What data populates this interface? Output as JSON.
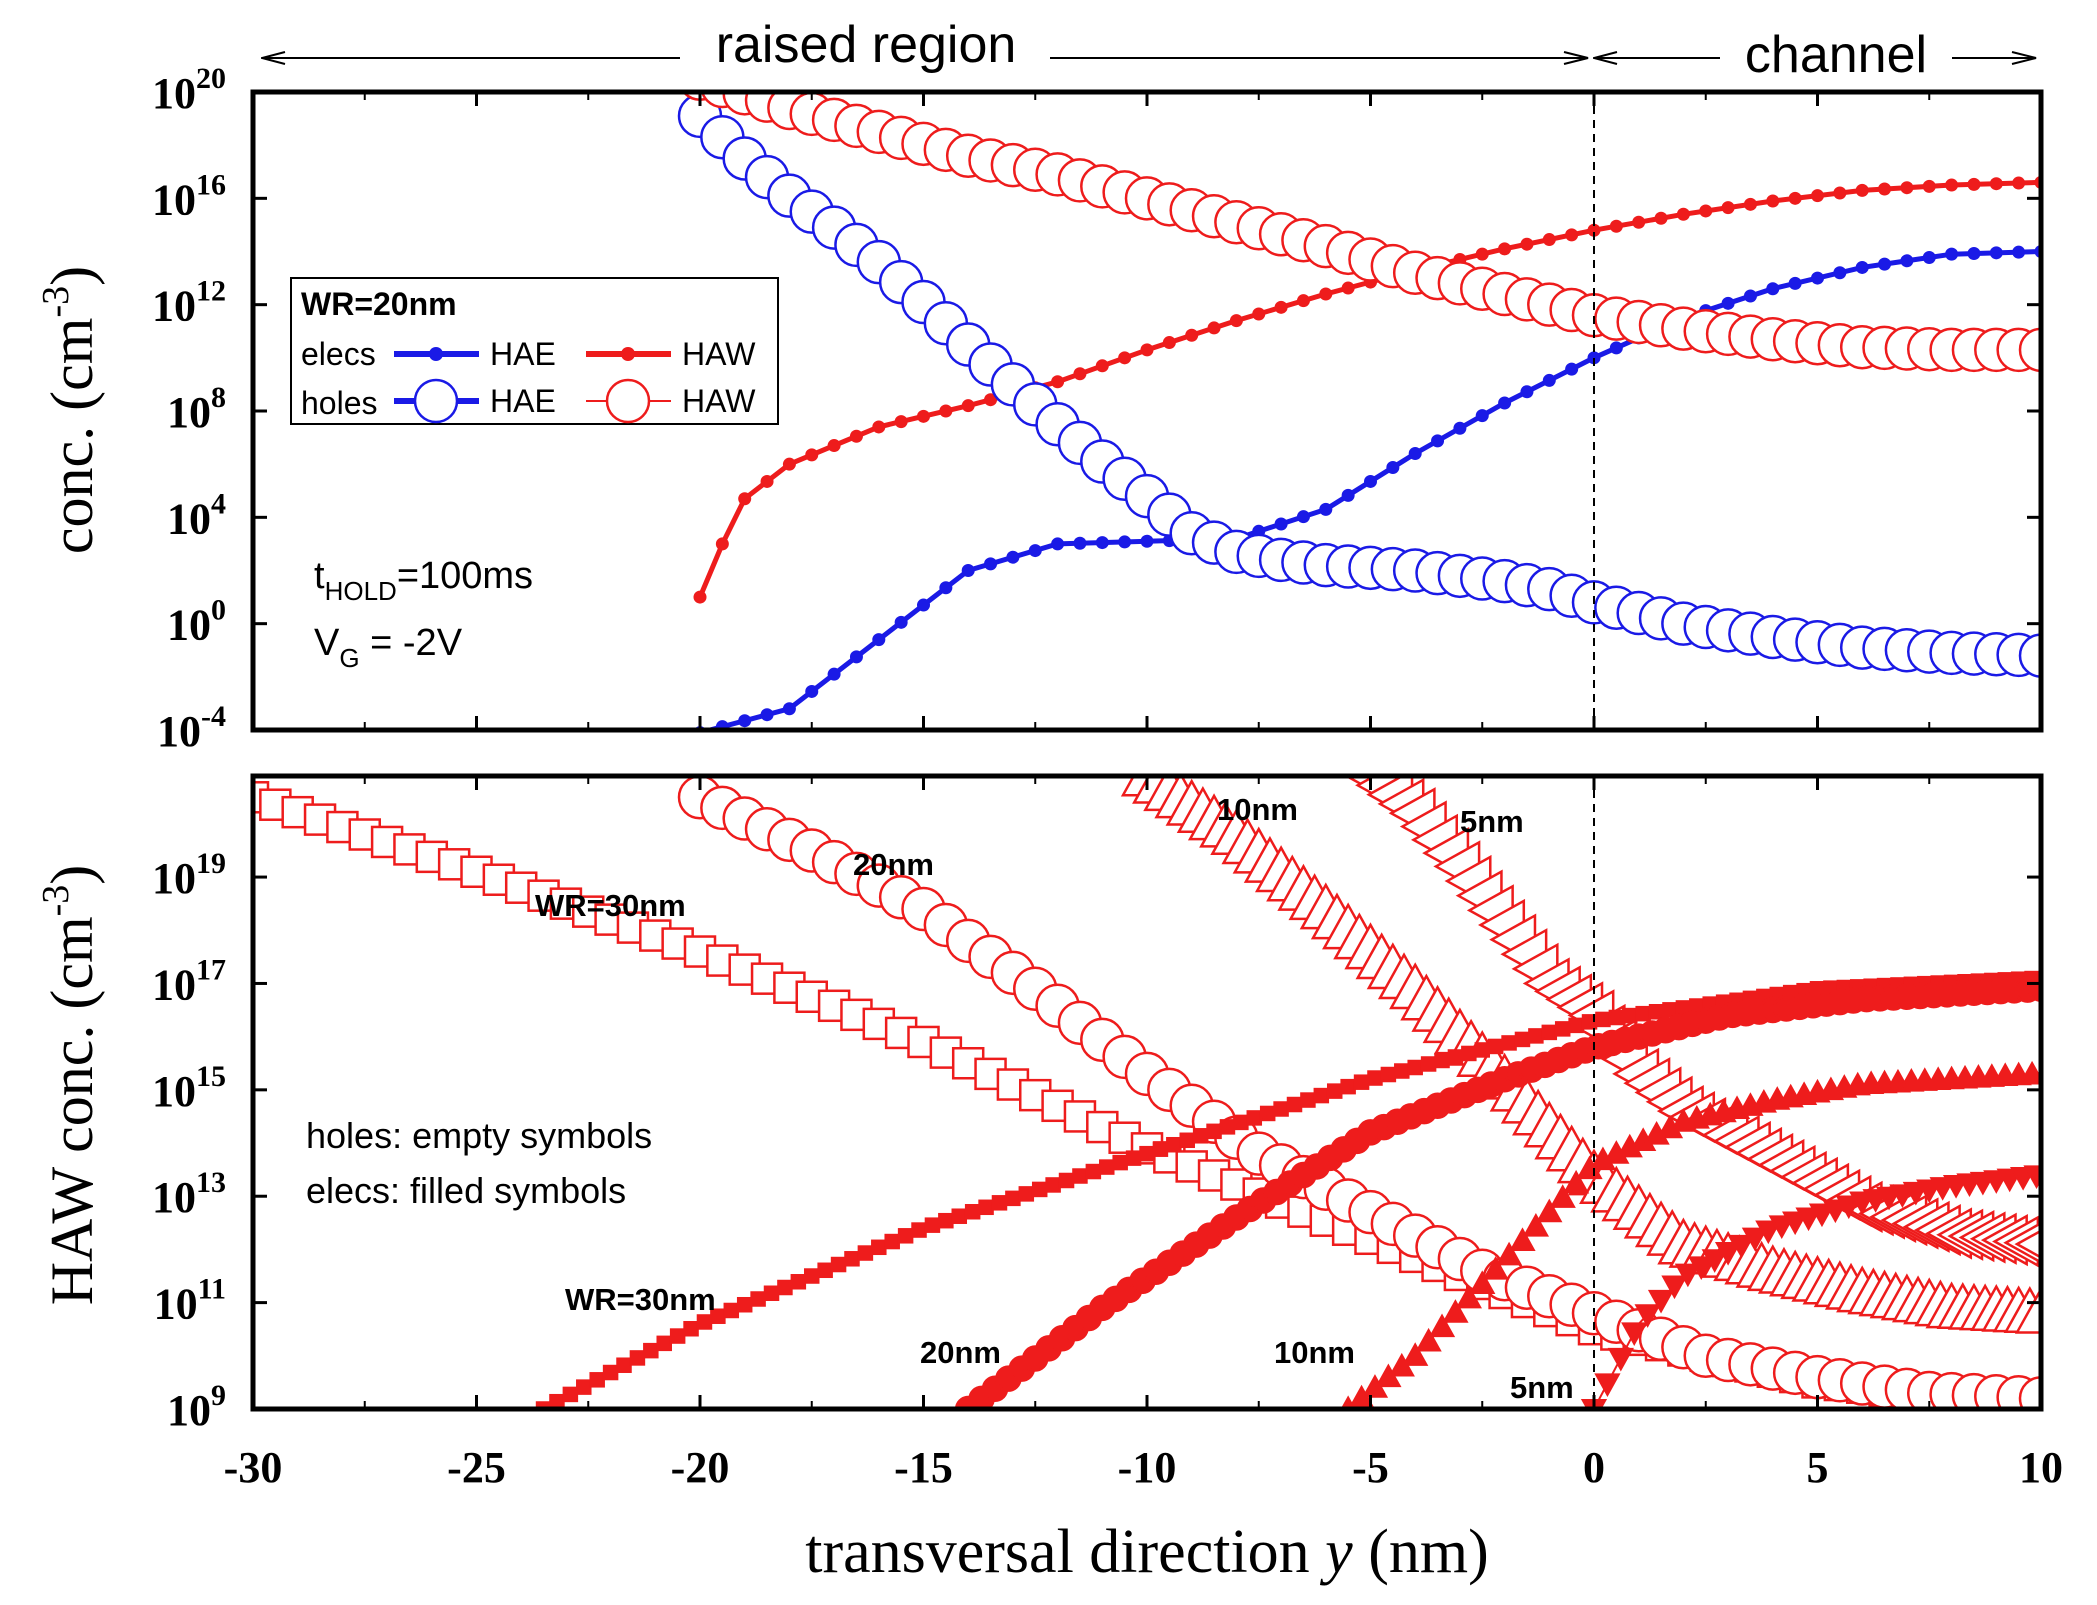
{
  "colors": {
    "red": "#ee1c1c",
    "blue": "#1a1ae6",
    "black": "#000000"
  },
  "header": {
    "region_left": "raised region",
    "region_right": "channel"
  },
  "xaxis": {
    "label_prefix": "transversal direction ",
    "label_var": "y",
    "label_suffix": " (nm)",
    "range": [
      -30,
      10
    ],
    "ticks": [
      "-30",
      "-25",
      "-20",
      "-15",
      "-10",
      "-5",
      "0",
      "5",
      "10"
    ]
  },
  "top": {
    "ylabel_main": "conc. (cm",
    "ylabel_exp": "-3",
    "ylabel_close": ")",
    "yrange_log": [
      -4,
      20
    ],
    "yticks": [
      {
        "base": "10",
        "exp": "20"
      },
      {
        "base": "10",
        "exp": "16"
      },
      {
        "base": "10",
        "exp": "12"
      },
      {
        "base": "10",
        "exp": "8"
      },
      {
        "base": "10",
        "exp": "4"
      },
      {
        "base": "10",
        "exp": "0"
      },
      {
        "base": "10",
        "exp": "-4"
      }
    ],
    "legend": {
      "title": "WR=20nm",
      "row1_label": "elecs",
      "row2_label": "holes",
      "hae": "HAE",
      "haw": "HAW"
    },
    "annotation": {
      "t_prefix": "t",
      "t_sub": "HOLD",
      "t_suffix": "=100ms",
      "v_prefix": "V",
      "v_sub": "G",
      "v_suffix": " = -2V"
    }
  },
  "bottom": {
    "ylabel_main": "HAW conc. (cm",
    "ylabel_exp": "-3",
    "ylabel_close": ")",
    "yrange_log": [
      9,
      20.9
    ],
    "yticks": [
      {
        "base": "10",
        "exp": "19"
      },
      {
        "base": "10",
        "exp": "17"
      },
      {
        "base": "10",
        "exp": "15"
      },
      {
        "base": "10",
        "exp": "13"
      },
      {
        "base": "10",
        "exp": "11"
      },
      {
        "base": "10",
        "exp": "9"
      }
    ],
    "note_line1": "holes: empty symbols",
    "note_line2": "elecs: filled symbols",
    "label_holes_30": "WR=30nm",
    "label_holes_20": "20nm",
    "label_holes_10": "10nm",
    "label_holes_5": "5nm",
    "label_elecs_30": "WR=30nm",
    "label_elecs_20": "20nm",
    "label_elecs_10": "10nm",
    "label_elecs_5": "5nm"
  },
  "chart_data": [
    {
      "type": "scatter",
      "title": "",
      "xlabel": "transversal direction y (nm)",
      "ylabel": "conc. (cm-3)",
      "yscale": "log",
      "xlim": [
        -30,
        10
      ],
      "ylim_log10": [
        -4,
        20
      ],
      "series": [
        {
          "name": "elecs HAE",
          "marker": "dot",
          "color": "blue",
          "x": [
            -20,
            -18,
            -16,
            -14,
            -12,
            -10,
            -8,
            -6,
            -4,
            -2,
            0,
            2,
            4,
            6,
            8,
            10
          ],
          "log10_y": [
            -4.1,
            -3.2,
            -0.6,
            2.0,
            3.0,
            3.1,
            3.2,
            4.3,
            6.4,
            8.3,
            10.0,
            11.5,
            12.6,
            13.4,
            13.9,
            14.0
          ]
        },
        {
          "name": "elecs HAW",
          "marker": "dot",
          "color": "red",
          "x": [
            -20,
            -19.5,
            -19,
            -18,
            -16,
            -14,
            -12,
            -10,
            -8,
            -6,
            -4,
            -2,
            0,
            2,
            4,
            6,
            8,
            10
          ],
          "log10_y": [
            1.0,
            3.0,
            4.7,
            6.0,
            7.4,
            8.2,
            9.1,
            10.3,
            11.4,
            12.4,
            13.3,
            14.1,
            14.8,
            15.4,
            15.9,
            16.3,
            16.5,
            16.6
          ]
        },
        {
          "name": "holes HAE",
          "marker": "circle",
          "color": "blue",
          "x": [
            -20,
            -19,
            -18,
            -17,
            -16,
            -15,
            -14,
            -13,
            -12,
            -11,
            -10,
            -9,
            -8,
            -7,
            -6,
            -5,
            -4,
            -3,
            -2,
            -1,
            0,
            2,
            4,
            6,
            8,
            10
          ],
          "log10_y": [
            19.1,
            17.5,
            16.1,
            14.9,
            13.6,
            12.1,
            10.5,
            9.0,
            7.5,
            6.1,
            4.8,
            3.4,
            2.7,
            2.4,
            2.2,
            2.1,
            2.0,
            1.8,
            1.6,
            1.3,
            0.8,
            0.0,
            -0.5,
            -0.9,
            -1.1,
            -1.2
          ]
        },
        {
          "name": "holes HAW",
          "marker": "circle",
          "color": "red",
          "x": [
            -20,
            -18,
            -16,
            -14,
            -12,
            -10,
            -8,
            -6,
            -4,
            -2,
            0,
            2,
            4,
            6,
            8,
            10
          ],
          "log10_y": [
            20.5,
            19.4,
            18.5,
            17.6,
            16.9,
            16.0,
            15.1,
            14.2,
            13.2,
            12.4,
            11.6,
            11.1,
            10.7,
            10.4,
            10.3,
            10.3
          ]
        }
      ]
    },
    {
      "type": "scatter",
      "title": "",
      "xlabel": "transversal direction y (nm)",
      "ylabel": "HAW conc. (cm-3)",
      "yscale": "log",
      "xlim": [
        -30,
        10
      ],
      "ylim_log10": [
        9,
        20.9
      ],
      "series": [
        {
          "name": "holes WR=30nm",
          "marker": "square-open",
          "color": "red",
          "x": [
            -30,
            -25,
            -20,
            -15,
            -10,
            -5,
            0,
            5,
            10
          ],
          "log10_y": [
            20.5,
            19.1,
            17.6,
            15.9,
            13.9,
            12.2,
            10.5,
            9.5,
            9.0
          ]
        },
        {
          "name": "holes WR=20nm",
          "marker": "circle-open",
          "color": "red",
          "x": [
            -20,
            -17.5,
            -15,
            -12.5,
            -10,
            -7.5,
            -5,
            -2.5,
            0,
            2.5,
            5,
            7.5,
            10
          ],
          "log10_y": [
            20.5,
            19.5,
            18.4,
            16.9,
            15.3,
            13.8,
            12.7,
            11.6,
            10.8,
            10.0,
            9.6,
            9.3,
            9.2
          ]
        },
        {
          "name": "holes WR=10nm",
          "marker": "triangle-up-open",
          "color": "red",
          "x": [
            -10,
            -8,
            -6,
            -4,
            -2,
            0,
            2,
            4,
            6,
            8,
            10
          ],
          "log10_y": [
            20.9,
            19.8,
            18.4,
            16.9,
            15.2,
            13.4,
            12.1,
            11.6,
            11.2,
            10.9,
            10.8
          ]
        },
        {
          "name": "holes WR=5nm",
          "marker": "triangle-left-open",
          "color": "red",
          "x": [
            -5,
            -4,
            -3,
            -2,
            -1,
            0,
            1,
            2,
            4,
            6,
            8,
            10
          ],
          "log10_y": [
            20.9,
            20.2,
            19.2,
            18.1,
            17.0,
            16.4,
            15.3,
            14.6,
            13.7,
            12.8,
            12.3,
            12.1
          ]
        },
        {
          "name": "elecs WR=30nm",
          "marker": "square-filled",
          "color": "red",
          "x": [
            -23.5,
            -20,
            -15,
            -10,
            -5,
            0,
            5,
            10
          ],
          "log10_y": [
            9.0,
            10.6,
            12.4,
            13.8,
            15.2,
            16.3,
            16.9,
            17.1
          ]
        },
        {
          "name": "elecs WR=20nm",
          "marker": "circle-filled",
          "color": "red",
          "x": [
            -14,
            -11,
            -8,
            -5,
            -2,
            0,
            3,
            6,
            10
          ],
          "log10_y": [
            9.0,
            10.9,
            12.6,
            14.2,
            15.2,
            15.8,
            16.4,
            16.7,
            16.9
          ]
        },
        {
          "name": "elecs WR=10nm",
          "marker": "triangle-up-filled",
          "color": "red",
          "x": [
            -5.5,
            -4,
            -2,
            0,
            2,
            4,
            6,
            8,
            10
          ],
          "log10_y": [
            9.0,
            10.0,
            11.8,
            13.6,
            14.4,
            14.8,
            15.1,
            15.2,
            15.3
          ]
        },
        {
          "name": "elecs WR=5nm",
          "marker": "triangle-down-filled",
          "color": "red",
          "x": [
            0,
            1,
            2,
            4,
            6,
            8,
            10
          ],
          "log10_y": [
            9.0,
            10.6,
            11.5,
            12.4,
            12.9,
            13.2,
            13.4
          ]
        }
      ]
    }
  ]
}
